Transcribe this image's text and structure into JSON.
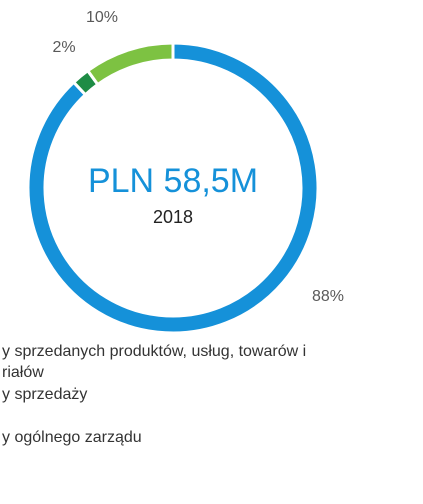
{
  "chart_data": {
    "type": "donut",
    "title": "PLN 58,5M",
    "subtitle": "2018",
    "values": [
      88,
      2,
      10
    ],
    "value_labels": [
      "88%",
      "2%",
      "10%"
    ],
    "colors": [
      "#1591d9",
      "#1e8c45",
      "#7dc242"
    ],
    "legend": [
      [
        "y sprzedanych produktów, usług, towarów i",
        "riałów"
      ],
      [
        "y sprzedaży"
      ],
      [
        "y ogólnego zarządu"
      ]
    ]
  }
}
